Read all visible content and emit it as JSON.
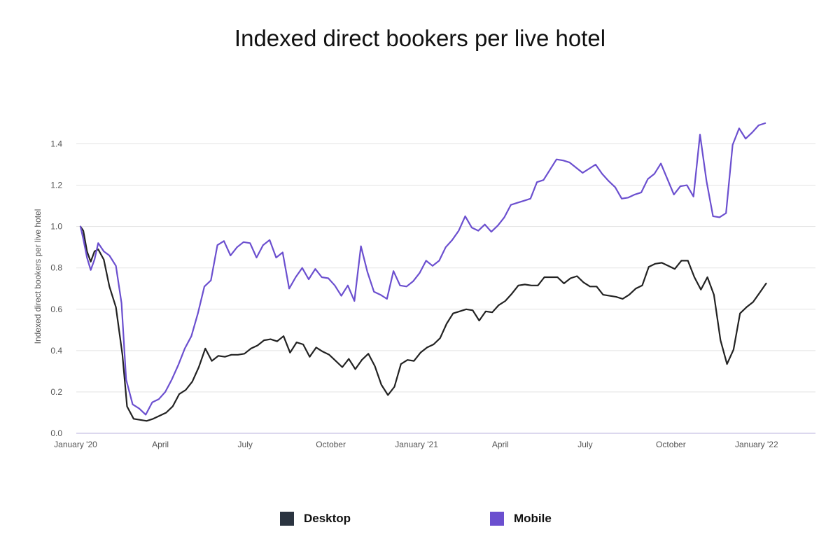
{
  "chart_data": {
    "type": "line",
    "title": "Indexed direct bookers per live hotel",
    "xlabel": "",
    "ylabel": "Indexed direct bookers per live hotel",
    "x_range": [
      "2020-01-01",
      "2022-02-28"
    ],
    "ylim": [
      0,
      1.5
    ],
    "yticks": [
      0.0,
      0.2,
      0.4,
      0.6,
      0.8,
      1.0,
      1.2,
      1.4
    ],
    "ytick_labels": [
      "0.0",
      "0.2",
      "0.4",
      "0.6",
      "0.8",
      "1.0",
      "1.2",
      "1.4"
    ],
    "xticks": [
      {
        "date": "2020-01-01",
        "label": "January '20"
      },
      {
        "date": "2020-04-01",
        "label": "April"
      },
      {
        "date": "2020-07-01",
        "label": "July"
      },
      {
        "date": "2020-10-01",
        "label": "October"
      },
      {
        "date": "2021-01-01",
        "label": "January '21"
      },
      {
        "date": "2021-04-01",
        "label": "April"
      },
      {
        "date": "2021-07-01",
        "label": "July"
      },
      {
        "date": "2021-10-01",
        "label": "October"
      },
      {
        "date": "2022-01-01",
        "label": "January '22"
      }
    ],
    "grid": true,
    "legend_position": "bottom",
    "series": [
      {
        "name": "Desktop",
        "color": "#222222",
        "points": [
          [
            "2020-01-01",
            1.0
          ],
          [
            "2020-01-04",
            0.98
          ],
          [
            "2020-01-08",
            0.88
          ],
          [
            "2020-01-12",
            0.83
          ],
          [
            "2020-01-16",
            0.88
          ],
          [
            "2020-01-20",
            0.89
          ],
          [
            "2020-01-26",
            0.84
          ],
          [
            "2020-02-01",
            0.71
          ],
          [
            "2020-02-08",
            0.61
          ],
          [
            "2020-02-15",
            0.38
          ],
          [
            "2020-02-20",
            0.13
          ],
          [
            "2020-02-27",
            0.07
          ],
          [
            "2020-03-05",
            0.065
          ],
          [
            "2020-03-12",
            0.06
          ],
          [
            "2020-03-19",
            0.07
          ],
          [
            "2020-03-26",
            0.085
          ],
          [
            "2020-04-02",
            0.1
          ],
          [
            "2020-04-09",
            0.13
          ],
          [
            "2020-04-16",
            0.19
          ],
          [
            "2020-04-23",
            0.21
          ],
          [
            "2020-04-30",
            0.25
          ],
          [
            "2020-05-07",
            0.32
          ],
          [
            "2020-05-14",
            0.41
          ],
          [
            "2020-05-21",
            0.35
          ],
          [
            "2020-05-28",
            0.375
          ],
          [
            "2020-06-04",
            0.37
          ],
          [
            "2020-06-11",
            0.38
          ],
          [
            "2020-06-18",
            0.38
          ],
          [
            "2020-06-25",
            0.385
          ],
          [
            "2020-07-02",
            0.41
          ],
          [
            "2020-07-09",
            0.425
          ],
          [
            "2020-07-16",
            0.45
          ],
          [
            "2020-07-23",
            0.455
          ],
          [
            "2020-07-30",
            0.445
          ],
          [
            "2020-08-06",
            0.47
          ],
          [
            "2020-08-13",
            0.39
          ],
          [
            "2020-08-20",
            0.44
          ],
          [
            "2020-08-27",
            0.43
          ],
          [
            "2020-09-03",
            0.37
          ],
          [
            "2020-09-10",
            0.415
          ],
          [
            "2020-09-17",
            0.395
          ],
          [
            "2020-09-24",
            0.38
          ],
          [
            "2020-10-01",
            0.35
          ],
          [
            "2020-10-08",
            0.32
          ],
          [
            "2020-10-15",
            0.36
          ],
          [
            "2020-10-22",
            0.31
          ],
          [
            "2020-10-29",
            0.355
          ],
          [
            "2020-11-05",
            0.385
          ],
          [
            "2020-11-12",
            0.325
          ],
          [
            "2020-11-19",
            0.235
          ],
          [
            "2020-11-26",
            0.185
          ],
          [
            "2020-12-03",
            0.225
          ],
          [
            "2020-12-10",
            0.335
          ],
          [
            "2020-12-17",
            0.355
          ],
          [
            "2020-12-24",
            0.35
          ],
          [
            "2020-12-31",
            0.39
          ],
          [
            "2021-01-07",
            0.415
          ],
          [
            "2021-01-14",
            0.43
          ],
          [
            "2021-01-21",
            0.46
          ],
          [
            "2021-01-28",
            0.53
          ],
          [
            "2021-02-04",
            0.58
          ],
          [
            "2021-02-11",
            0.59
          ],
          [
            "2021-02-18",
            0.6
          ],
          [
            "2021-02-25",
            0.595
          ],
          [
            "2021-03-04",
            0.545
          ],
          [
            "2021-03-11",
            0.59
          ],
          [
            "2021-03-18",
            0.585
          ],
          [
            "2021-03-25",
            0.62
          ],
          [
            "2021-04-01",
            0.64
          ],
          [
            "2021-04-08",
            0.675
          ],
          [
            "2021-04-15",
            0.715
          ],
          [
            "2021-04-22",
            0.72
          ],
          [
            "2021-04-29",
            0.715
          ],
          [
            "2021-05-06",
            0.715
          ],
          [
            "2021-05-13",
            0.755
          ],
          [
            "2021-05-20",
            0.755
          ],
          [
            "2021-05-27",
            0.755
          ],
          [
            "2021-06-03",
            0.725
          ],
          [
            "2021-06-10",
            0.75
          ],
          [
            "2021-06-17",
            0.76
          ],
          [
            "2021-06-24",
            0.73
          ],
          [
            "2021-07-01",
            0.71
          ],
          [
            "2021-07-08",
            0.71
          ],
          [
            "2021-07-15",
            0.67
          ],
          [
            "2021-07-22",
            0.665
          ],
          [
            "2021-07-29",
            0.66
          ],
          [
            "2021-08-05",
            0.65
          ],
          [
            "2021-08-12",
            0.67
          ],
          [
            "2021-08-19",
            0.7
          ],
          [
            "2021-08-26",
            0.715
          ],
          [
            "2021-09-02",
            0.805
          ],
          [
            "2021-09-09",
            0.82
          ],
          [
            "2021-09-16",
            0.825
          ],
          [
            "2021-09-23",
            0.81
          ],
          [
            "2021-09-30",
            0.795
          ],
          [
            "2021-10-07",
            0.835
          ],
          [
            "2021-10-14",
            0.835
          ],
          [
            "2021-10-21",
            0.755
          ],
          [
            "2021-10-28",
            0.695
          ],
          [
            "2021-11-04",
            0.755
          ],
          [
            "2021-11-11",
            0.67
          ],
          [
            "2021-11-18",
            0.45
          ],
          [
            "2021-11-25",
            0.335
          ],
          [
            "2021-12-02",
            0.405
          ],
          [
            "2021-12-09",
            0.58
          ],
          [
            "2021-12-16",
            0.61
          ],
          [
            "2021-12-23",
            0.635
          ],
          [
            "2021-12-30",
            0.68
          ],
          [
            "2022-01-06",
            0.725
          ]
        ]
      },
      {
        "name": "Mobile",
        "color": "#6b4fcf",
        "points": [
          [
            "2020-01-01",
            1.0
          ],
          [
            "2020-01-04",
            0.94
          ],
          [
            "2020-01-08",
            0.85
          ],
          [
            "2020-01-12",
            0.79
          ],
          [
            "2020-01-16",
            0.84
          ],
          [
            "2020-01-20",
            0.92
          ],
          [
            "2020-01-26",
            0.88
          ],
          [
            "2020-02-01",
            0.86
          ],
          [
            "2020-02-08",
            0.81
          ],
          [
            "2020-02-14",
            0.63
          ],
          [
            "2020-02-19",
            0.26
          ],
          [
            "2020-02-26",
            0.14
          ],
          [
            "2020-03-04",
            0.12
          ],
          [
            "2020-03-11",
            0.09
          ],
          [
            "2020-03-18",
            0.15
          ],
          [
            "2020-03-25",
            0.165
          ],
          [
            "2020-04-01",
            0.2
          ],
          [
            "2020-04-08",
            0.26
          ],
          [
            "2020-04-15",
            0.33
          ],
          [
            "2020-04-22",
            0.41
          ],
          [
            "2020-04-29",
            0.47
          ],
          [
            "2020-05-06",
            0.58
          ],
          [
            "2020-05-13",
            0.71
          ],
          [
            "2020-05-20",
            0.74
          ],
          [
            "2020-05-27",
            0.91
          ],
          [
            "2020-06-03",
            0.93
          ],
          [
            "2020-06-10",
            0.86
          ],
          [
            "2020-06-17",
            0.9
          ],
          [
            "2020-06-24",
            0.925
          ],
          [
            "2020-07-01",
            0.92
          ],
          [
            "2020-07-08",
            0.85
          ],
          [
            "2020-07-15",
            0.91
          ],
          [
            "2020-07-22",
            0.935
          ],
          [
            "2020-07-29",
            0.85
          ],
          [
            "2020-08-05",
            0.875
          ],
          [
            "2020-08-12",
            0.7
          ],
          [
            "2020-08-19",
            0.755
          ],
          [
            "2020-08-26",
            0.8
          ],
          [
            "2020-09-02",
            0.745
          ],
          [
            "2020-09-09",
            0.795
          ],
          [
            "2020-09-16",
            0.755
          ],
          [
            "2020-09-23",
            0.75
          ],
          [
            "2020-09-30",
            0.715
          ],
          [
            "2020-10-07",
            0.665
          ],
          [
            "2020-10-14",
            0.715
          ],
          [
            "2020-10-21",
            0.64
          ],
          [
            "2020-10-28",
            0.905
          ],
          [
            "2020-11-04",
            0.78
          ],
          [
            "2020-11-11",
            0.685
          ],
          [
            "2020-11-18",
            0.67
          ],
          [
            "2020-11-25",
            0.65
          ],
          [
            "2020-12-02",
            0.785
          ],
          [
            "2020-12-09",
            0.715
          ],
          [
            "2020-12-16",
            0.71
          ],
          [
            "2020-12-23",
            0.735
          ],
          [
            "2020-12-30",
            0.775
          ],
          [
            "2021-01-06",
            0.835
          ],
          [
            "2021-01-13",
            0.81
          ],
          [
            "2021-01-20",
            0.835
          ],
          [
            "2021-01-27",
            0.9
          ],
          [
            "2021-02-03",
            0.935
          ],
          [
            "2021-02-10",
            0.98
          ],
          [
            "2021-02-17",
            1.05
          ],
          [
            "2021-02-24",
            0.995
          ],
          [
            "2021-03-03",
            0.98
          ],
          [
            "2021-03-10",
            1.01
          ],
          [
            "2021-03-17",
            0.975
          ],
          [
            "2021-03-24",
            1.005
          ],
          [
            "2021-03-31",
            1.045
          ],
          [
            "2021-04-07",
            1.105
          ],
          [
            "2021-04-14",
            1.115
          ],
          [
            "2021-04-21",
            1.125
          ],
          [
            "2021-04-28",
            1.135
          ],
          [
            "2021-05-05",
            1.215
          ],
          [
            "2021-05-12",
            1.225
          ],
          [
            "2021-05-19",
            1.275
          ],
          [
            "2021-05-26",
            1.325
          ],
          [
            "2021-06-02",
            1.32
          ],
          [
            "2021-06-09",
            1.31
          ],
          [
            "2021-06-16",
            1.285
          ],
          [
            "2021-06-23",
            1.26
          ],
          [
            "2021-06-30",
            1.28
          ],
          [
            "2021-07-07",
            1.3
          ],
          [
            "2021-07-14",
            1.255
          ],
          [
            "2021-07-21",
            1.22
          ],
          [
            "2021-07-28",
            1.19
          ],
          [
            "2021-08-04",
            1.135
          ],
          [
            "2021-08-11",
            1.14
          ],
          [
            "2021-08-18",
            1.155
          ],
          [
            "2021-08-25",
            1.165
          ],
          [
            "2021-09-01",
            1.23
          ],
          [
            "2021-09-08",
            1.255
          ],
          [
            "2021-09-15",
            1.305
          ],
          [
            "2021-09-22",
            1.23
          ],
          [
            "2021-09-29",
            1.155
          ],
          [
            "2021-10-06",
            1.195
          ],
          [
            "2021-10-13",
            1.2
          ],
          [
            "2021-10-20",
            1.145
          ],
          [
            "2021-10-27",
            1.445
          ],
          [
            "2021-11-03",
            1.22
          ],
          [
            "2021-11-10",
            1.05
          ],
          [
            "2021-11-17",
            1.045
          ],
          [
            "2021-11-24",
            1.065
          ],
          [
            "2021-12-01",
            1.395
          ],
          [
            "2021-12-08",
            1.475
          ],
          [
            "2021-12-15",
            1.425
          ],
          [
            "2021-12-22",
            1.455
          ],
          [
            "2021-12-29",
            1.49
          ],
          [
            "2022-01-05",
            1.5
          ]
        ]
      }
    ]
  }
}
